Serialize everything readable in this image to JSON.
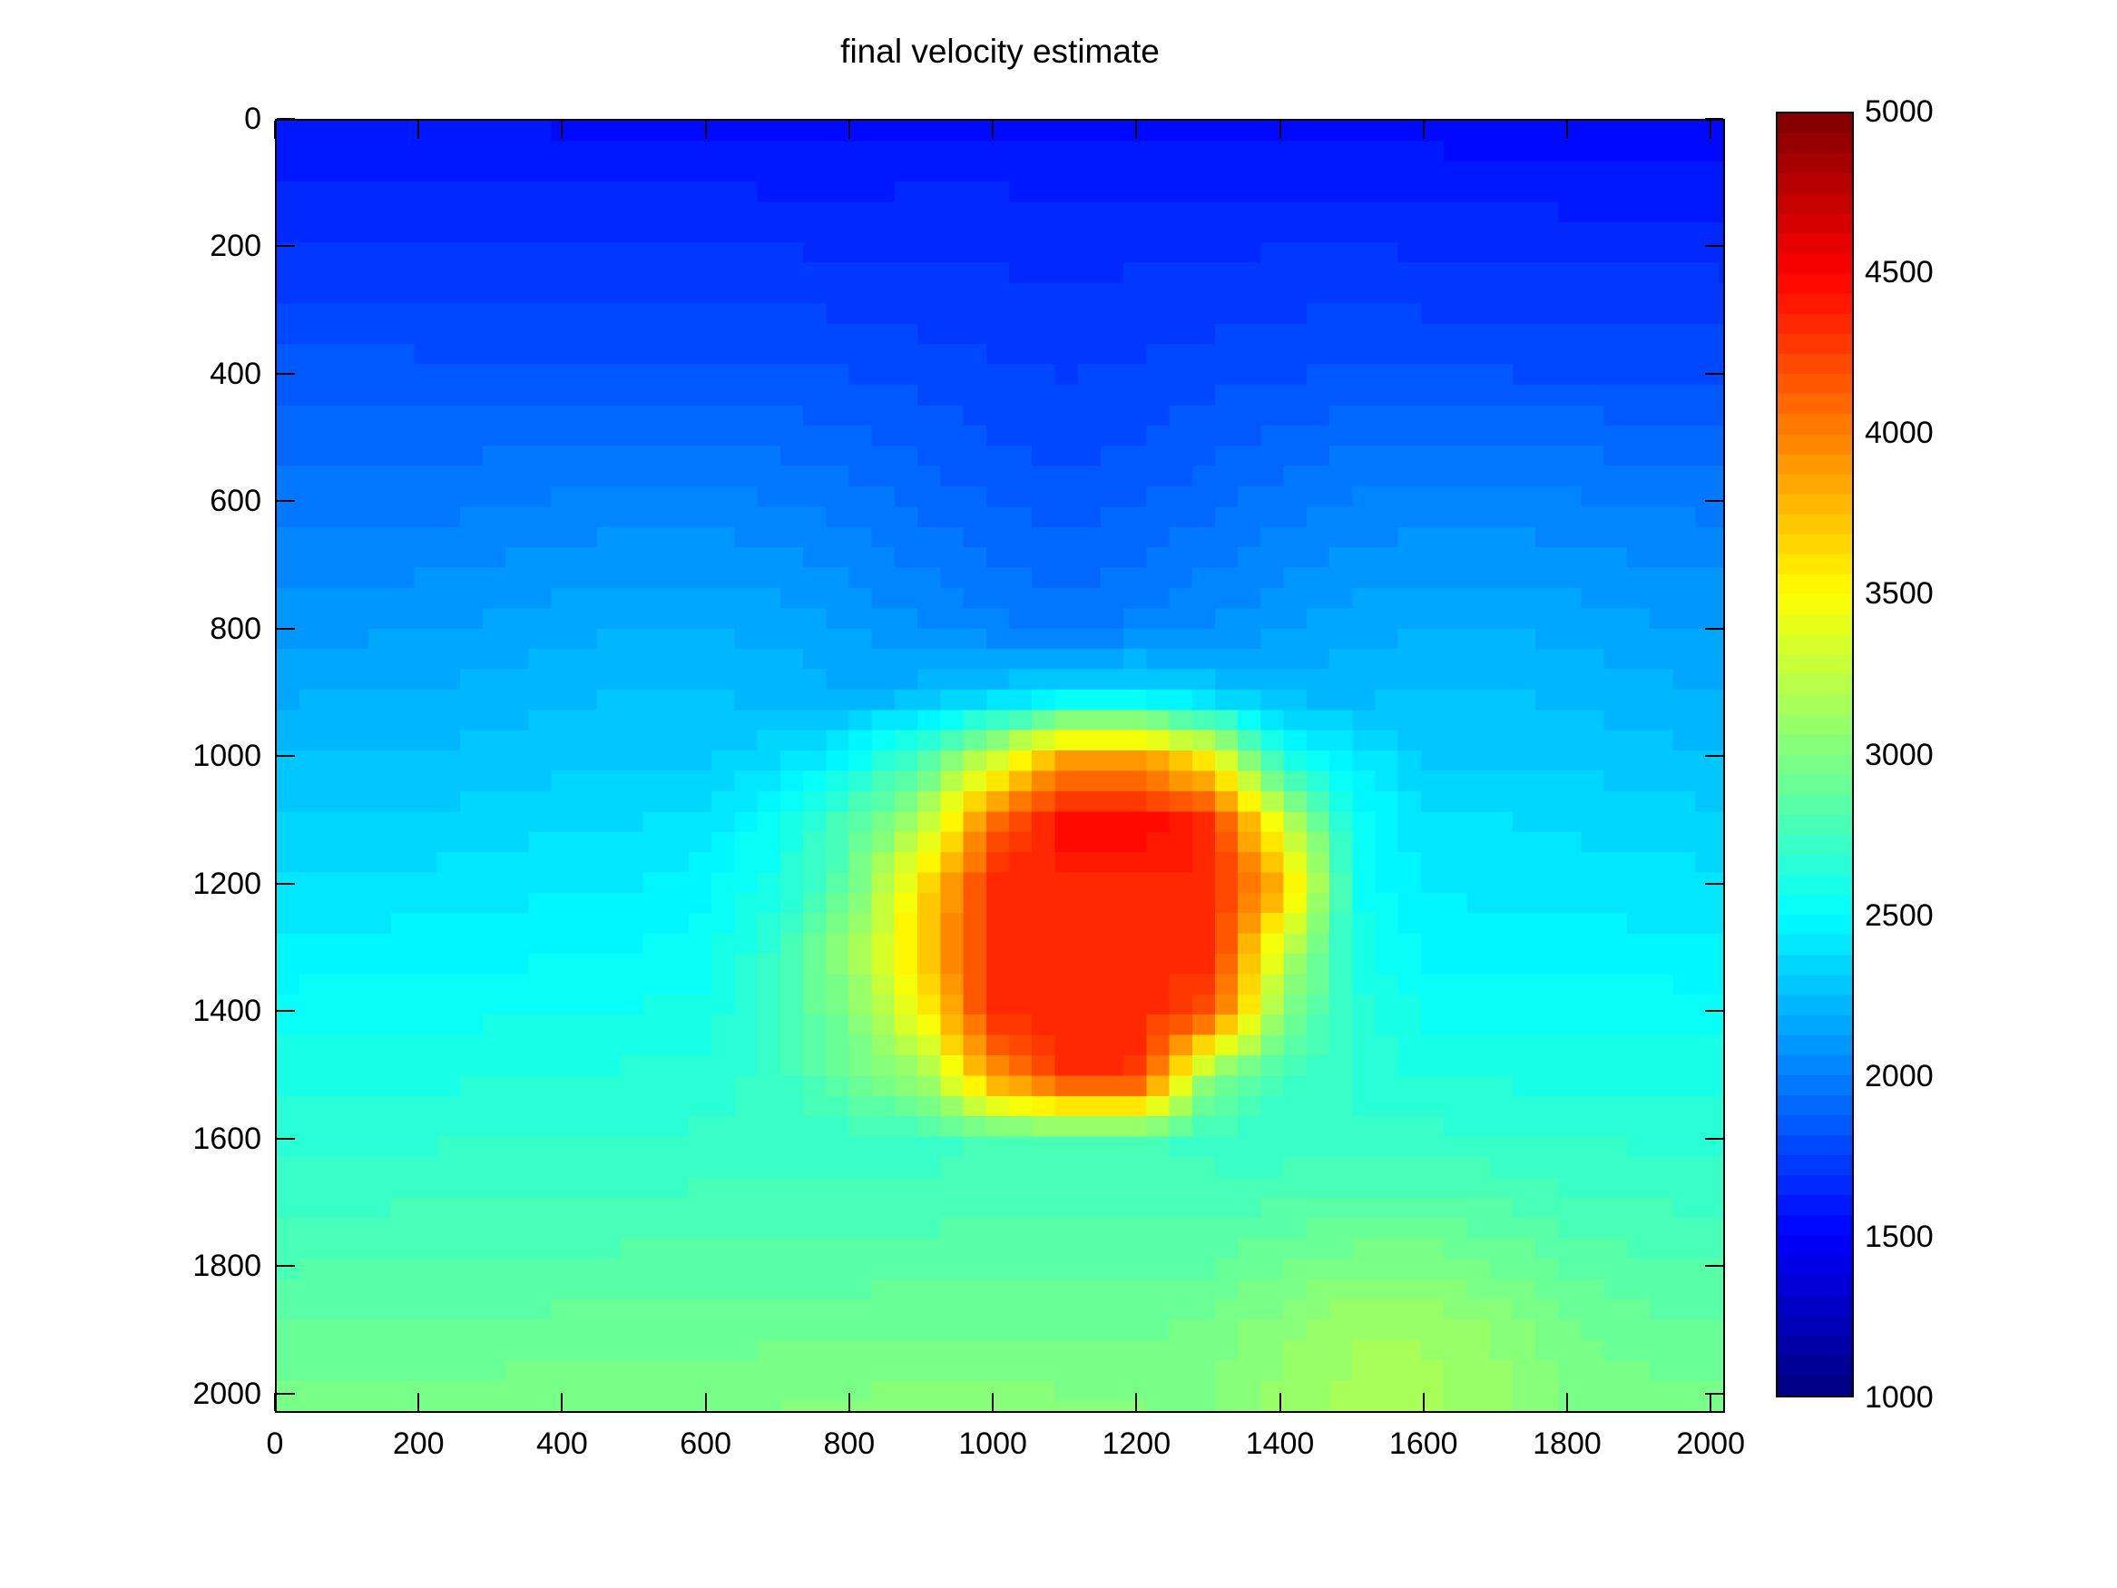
{
  "figure": {
    "title": "final velocity estimate",
    "background": "#ffffff",
    "text_color": "#000000"
  },
  "axes": {
    "x_ticks": [
      0,
      200,
      400,
      600,
      800,
      1000,
      1200,
      1400,
      1600,
      1800,
      2000
    ],
    "y_ticks": [
      0,
      200,
      400,
      600,
      800,
      1000,
      1200,
      1400,
      1600,
      1800,
      2000
    ],
    "x_range": [
      0,
      2020
    ],
    "y_range": [
      0,
      2030
    ]
  },
  "colorbar": {
    "min": 1000,
    "max": 5000,
    "tick_labels": [
      1000,
      1500,
      2000,
      2500,
      3000,
      3500,
      4000,
      4500,
      5000
    ],
    "inner_tick_values": [
      1500,
      2000,
      2500,
      3000,
      3500,
      4000,
      4500
    ],
    "levels": 64,
    "colormap": "jet"
  },
  "chart_data": {
    "type": "heatmap",
    "title": "final velocity estimate",
    "colormap": "jet",
    "clim": [
      1000,
      5000
    ],
    "grid_extent": [
      0,
      2040
    ],
    "orientation": "depth z increases downward",
    "x": [
      0,
      100,
      200,
      300,
      400,
      500,
      600,
      700,
      800,
      900,
      1000,
      1100,
      1200,
      1300,
      1400,
      1500,
      1600,
      1700,
      1800,
      1900,
      2000
    ],
    "z": [
      0,
      100,
      200,
      300,
      400,
      500,
      600,
      700,
      800,
      900,
      1000,
      1100,
      1200,
      1300,
      1400,
      1500,
      1600,
      1700,
      1800,
      1900,
      2000
    ],
    "values": [
      [
        1560,
        1560,
        1555,
        1555,
        1550,
        1550,
        1550,
        1545,
        1545,
        1550,
        1550,
        1545,
        1540,
        1540,
        1540,
        1535,
        1530,
        1525,
        1520,
        1515,
        1515
      ],
      [
        1630,
        1630,
        1625,
        1625,
        1620,
        1620,
        1620,
        1615,
        1615,
        1620,
        1620,
        1615,
        1610,
        1610,
        1605,
        1605,
        1600,
        1595,
        1590,
        1590,
        1585
      ],
      [
        1700,
        1700,
        1695,
        1695,
        1690,
        1690,
        1690,
        1685,
        1680,
        1682,
        1675,
        1670,
        1674,
        1681,
        1685,
        1685,
        1680,
        1675,
        1670,
        1665,
        1660
      ],
      [
        1770,
        1770,
        1765,
        1765,
        1762,
        1760,
        1760,
        1755,
        1744,
        1730,
        1712,
        1705,
        1712,
        1730,
        1745,
        1752,
        1748,
        1744,
        1740,
        1735,
        1730
      ],
      [
        1840,
        1840,
        1836,
        1835,
        1832,
        1830,
        1830,
        1824,
        1812,
        1792,
        1762,
        1748,
        1762,
        1792,
        1812,
        1820,
        1818,
        1815,
        1810,
        1806,
        1800
      ],
      [
        1910,
        1910,
        1912,
        1922,
        1929,
        1929,
        1922,
        1918,
        1895,
        1857,
        1811,
        1790,
        1811,
        1857,
        1895,
        1922,
        1929,
        1929,
        1922,
        1912,
        1905
      ],
      [
        1971,
        1973,
        1978,
        1992,
        2010,
        2023,
        2023,
        2005,
        1972,
        1923,
        1870,
        1845,
        1870,
        1923,
        1972,
        2009,
        2023,
        2023,
        2010,
        1992,
        1979
      ],
      [
        2041,
        2044,
        2051,
        2070,
        2094,
        2112,
        2112,
        2089,
        2050,
        1994,
        1937,
        1910,
        1937,
        1994,
        2050,
        2089,
        2112,
        2112,
        2094,
        2070,
        2052
      ],
      [
        2111,
        2114,
        2122,
        2142,
        2168,
        2187,
        2187,
        2164,
        2124,
        2072,
        2020,
        1995,
        2020,
        2072,
        2124,
        2164,
        2187,
        2187,
        2168,
        2142,
        2123
      ],
      [
        2181,
        2184,
        2191,
        2210,
        2234,
        2252,
        2252,
        2231,
        2197,
        2220,
        2300,
        2400,
        2400,
        2300,
        2220,
        2231,
        2252,
        2252,
        2234,
        2210,
        2192
      ],
      [
        2251,
        2253,
        2259,
        2274,
        2293,
        2308,
        2308,
        2350,
        2500,
        2800,
        3300,
        3900,
        3900,
        3500,
        2600,
        2430,
        2308,
        2308,
        2293,
        2274,
        2260
      ],
      [
        2321,
        2323,
        2329,
        2344,
        2360,
        2375,
        2400,
        2550,
        2800,
        3200,
        4100,
        4480,
        4480,
        4360,
        3300,
        2550,
        2380,
        2380,
        2365,
        2350,
        2335
      ],
      [
        2391,
        2393,
        2399,
        2410,
        2425,
        2440,
        2480,
        2600,
        2900,
        3600,
        4360,
        4360,
        4360,
        4360,
        3800,
        2550,
        2430,
        2420,
        2410,
        2400,
        2395
      ],
      [
        2461,
        2463,
        2469,
        2480,
        2490,
        2500,
        2540,
        2700,
        3100,
        3700,
        4360,
        4360,
        4360,
        4360,
        3300,
        2600,
        2480,
        2470,
        2465,
        2462,
        2460
      ],
      [
        2531,
        2533,
        2539,
        2550,
        2560,
        2570,
        2580,
        2750,
        3000,
        3500,
        4360,
        4360,
        4360,
        4200,
        3000,
        2650,
        2550,
        2545,
        2540,
        2535,
        2530
      ],
      [
        2601,
        2603,
        2609,
        2620,
        2630,
        2640,
        2650,
        2720,
        2900,
        3100,
        3900,
        4330,
        4300,
        3000,
        2750,
        2680,
        2620,
        2615,
        2610,
        2605,
        2600
      ],
      [
        2671,
        2673,
        2679,
        2685,
        2690,
        2695,
        2700,
        2705,
        2710,
        2720,
        2760,
        2780,
        2760,
        2720,
        2700,
        2700,
        2710,
        2700,
        2690,
        2680,
        2672
      ],
      [
        2741,
        2743,
        2749,
        2755,
        2760,
        2765,
        2770,
        2775,
        2780,
        2785,
        2790,
        2800,
        2790,
        2790,
        2820,
        2840,
        2840,
        2810,
        2770,
        2750,
        2742
      ],
      [
        2811,
        2813,
        2819,
        2825,
        2830,
        2835,
        2840,
        2845,
        2850,
        2855,
        2860,
        2865,
        2860,
        2870,
        2940,
        2990,
        2990,
        2940,
        2870,
        2830,
        2815
      ],
      [
        2881,
        2883,
        2889,
        2895,
        2900,
        2905,
        2910,
        2915,
        2920,
        2925,
        2930,
        2935,
        2930,
        2950,
        3050,
        3120,
        3120,
        3050,
        2950,
        2905,
        2885
      ],
      [
        2951,
        2953,
        2959,
        2965,
        2975,
        2985,
        2995,
        3000,
        3005,
        3010,
        3010,
        3005,
        3000,
        3000,
        3080,
        3140,
        3140,
        3080,
        3000,
        2960,
        2952
      ]
    ]
  }
}
